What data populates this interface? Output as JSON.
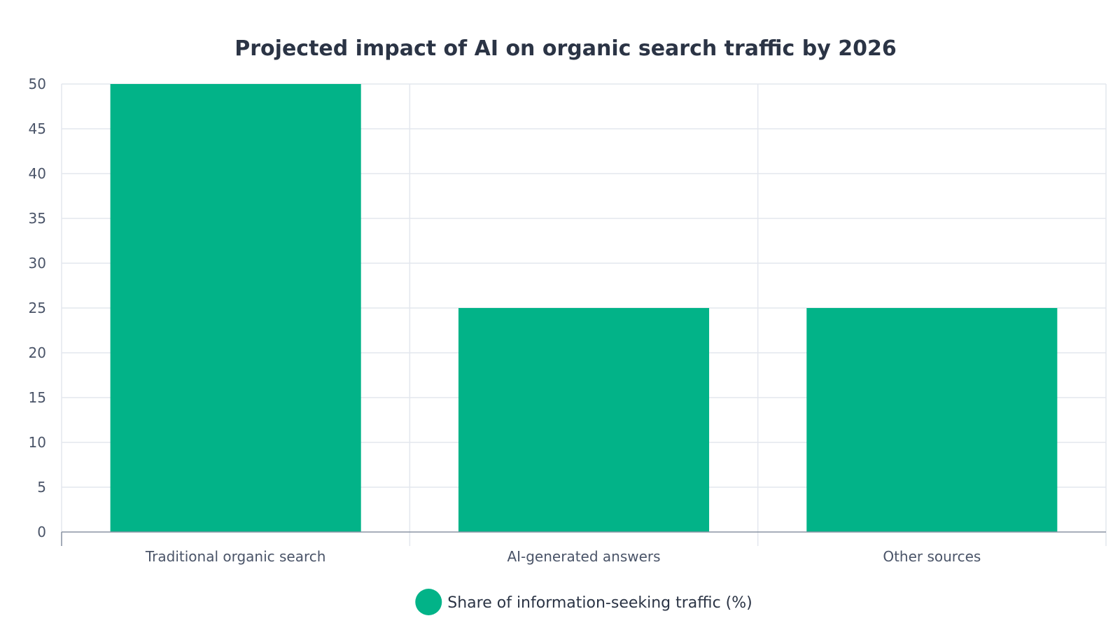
{
  "chart_data": {
    "type": "bar",
    "title": "Projected impact of AI on organic search traffic by 2026",
    "xlabel": "",
    "ylabel": "",
    "categories": [
      "Traditional organic search",
      "AI-generated answers",
      "Other sources"
    ],
    "series": [
      {
        "name": "Share of information-seeking traffic (%)",
        "values": [
          50,
          25,
          25
        ],
        "color": "#02b388"
      }
    ],
    "ylim": [
      0,
      50
    ],
    "yticks": [
      0,
      5,
      10,
      15,
      20,
      25,
      30,
      35,
      40,
      45,
      50
    ],
    "grid": true,
    "legend_position": "bottom-center"
  }
}
